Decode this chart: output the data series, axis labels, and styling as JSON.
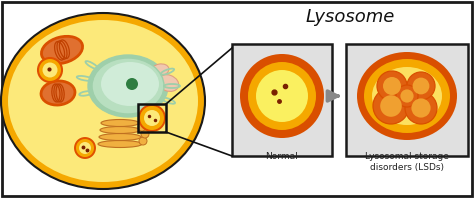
{
  "bg_color": "#ffffff",
  "border_color": "#1a1a1a",
  "cell_outer_color": "#f5a800",
  "cell_inner_color": "#fce97a",
  "nucleus_outer_color": "#b8dfc0",
  "nucleus_inner_color": "#d0ecd8",
  "nucleolus_color": "#2e7d40",
  "er_color": "#9ecfaa",
  "mito_outer_color": "#d94f00",
  "mito_inner_color": "#e07030",
  "mito_ridge_color": "#c04000",
  "lyso_ring1": "#e05000",
  "lyso_ring2": "#f5a800",
  "lyso_center": "#fce97a",
  "lyso_dot": "#7a2000",
  "vacuole_color": "#f5c060",
  "panel_bg": "#e0e0e0",
  "panel_border": "#1a1a1a",
  "normal_ring1": "#d94f00",
  "normal_ring2": "#f5a800",
  "normal_inner": "#faf060",
  "normal_dot": "#7a2000",
  "lsd_ring1": "#d94f00",
  "lsd_ring2": "#f5a800",
  "lsd_inner": "#fce060",
  "lsd_vesicle": "#e06010",
  "lsd_vesicle_inner": "#f0a030",
  "arrow_color": "#888888",
  "golgi_color": "#f0b040",
  "golgi_edge": "#c07020",
  "title_text": "Lysosome",
  "normal_label": "Normal",
  "lsd_label": "Lysosomal storage\ndisorders (LSDs)",
  "title_fontsize": 13,
  "label_fontsize": 6.5
}
